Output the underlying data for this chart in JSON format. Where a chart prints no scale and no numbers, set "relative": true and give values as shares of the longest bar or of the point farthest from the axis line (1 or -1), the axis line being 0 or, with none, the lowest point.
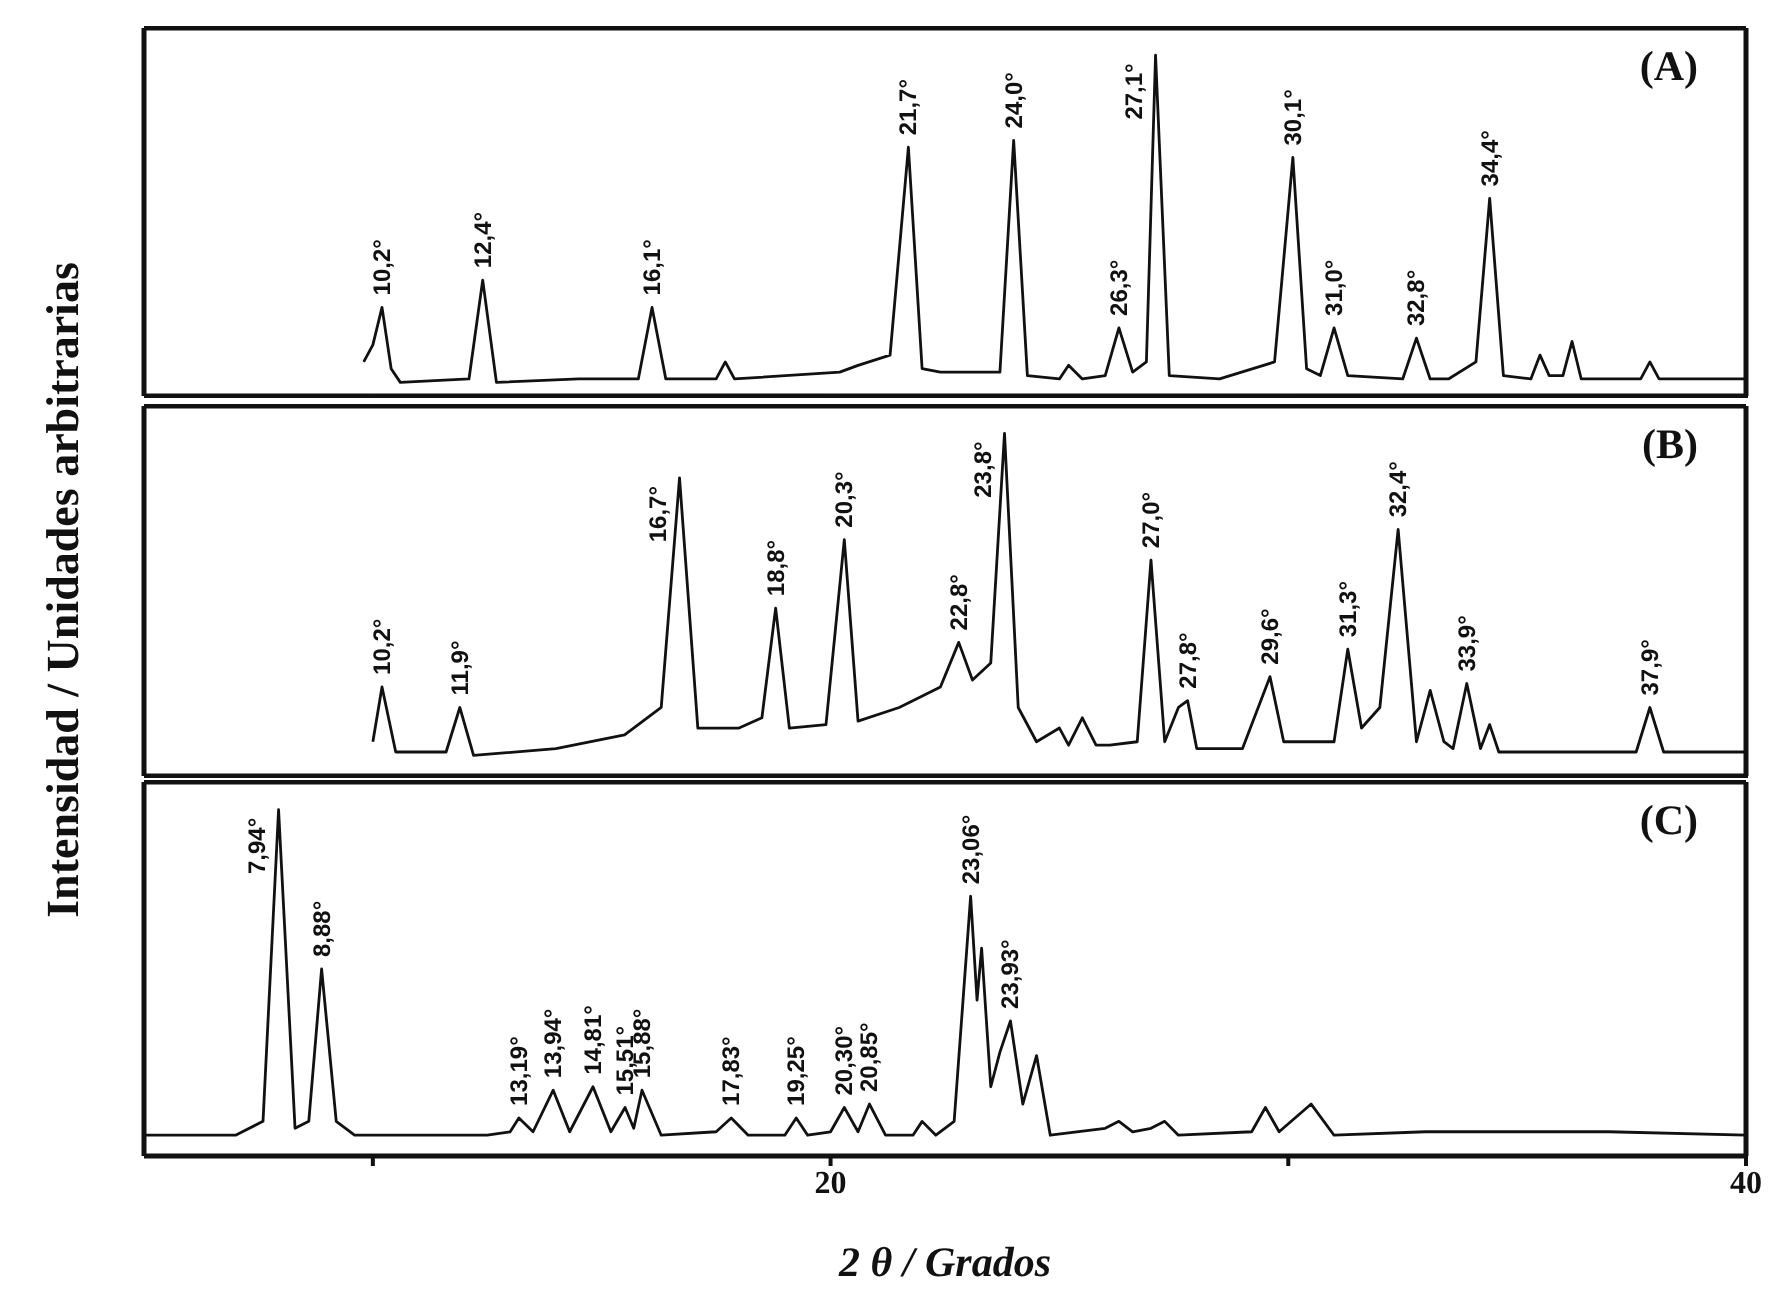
{
  "chart_data": [
    {
      "type": "line",
      "relative": true,
      "xlim": [
        5,
        40
      ],
      "xticks": [
        {
          "value": 10,
          "label": null
        },
        {
          "value": 20,
          "label": null
        },
        {
          "value": 30,
          "label": null
        },
        {
          "value": 40,
          "label": null
        }
      ],
      "tick_labels": false,
      "marker": "none",
      "x": [
        9.8,
        10.0,
        10.2,
        10.4,
        10.6,
        12.1,
        12.4,
        12.7,
        14.5,
        15.8,
        16.1,
        16.4,
        17.5,
        17.7,
        17.9,
        20.2,
        20.6,
        21.3,
        21.7,
        22.0,
        22.4,
        23.7,
        24.0,
        24.3,
        25.0,
        25.2,
        25.5,
        26.0,
        26.3,
        26.6,
        26.9,
        27.1,
        27.4,
        28.5,
        29.7,
        30.1,
        30.4,
        30.7,
        31.0,
        31.3,
        32.5,
        32.8,
        33.1,
        33.5,
        34.1,
        34.4,
        34.7,
        35.3,
        35.5,
        35.7,
        36.0,
        36.2,
        36.4,
        37.7,
        37.9,
        38.1,
        40
      ],
      "series": [
        {
          "color": "#111111",
          "values": [
            0.1,
            0.15,
            0.26,
            0.08,
            0.04,
            0.05,
            0.34,
            0.04,
            0.05,
            0.05,
            0.26,
            0.05,
            0.05,
            0.1,
            0.05,
            0.07,
            0.09,
            0.12,
            0.73,
            0.08,
            0.07,
            0.07,
            0.75,
            0.06,
            0.05,
            0.09,
            0.05,
            0.06,
            0.2,
            0.07,
            0.1,
            1.0,
            0.06,
            0.05,
            0.1,
            0.7,
            0.08,
            0.06,
            0.2,
            0.06,
            0.05,
            0.17,
            0.05,
            0.05,
            0.1,
            0.58,
            0.06,
            0.05,
            0.12,
            0.06,
            0.06,
            0.16,
            0.05,
            0.05,
            0.1,
            0.05,
            0.05
          ]
        }
      ],
      "annotations": [
        "(A)",
        {
          "text": "10,2°",
          "x": 10.2,
          "y": 0.26
        },
        {
          "text": "12,4°",
          "x": 12.4,
          "y": 0.34
        },
        {
          "text": "16,1°",
          "x": 16.1,
          "y": 0.26
        },
        {
          "text": "21,7°",
          "x": 21.7,
          "y": 0.73
        },
        {
          "text": "24,0°",
          "x": 24.0,
          "y": 0.75
        },
        {
          "text": "26,3°",
          "x": 26.3,
          "y": 0.2
        },
        {
          "text": "27,1°",
          "x": 27.1,
          "y": 1.0
        },
        {
          "text": "30,1°",
          "x": 30.1,
          "y": 0.7
        },
        {
          "text": "31,0°",
          "x": 31.0,
          "y": 0.2
        },
        {
          "text": "32,8°",
          "x": 32.8,
          "y": 0.17
        },
        {
          "text": "34,4°",
          "x": 34.4,
          "y": 0.58
        }
      ]
    },
    {
      "type": "line",
      "relative": true,
      "xlim": [
        5,
        40
      ],
      "xticks": [
        {
          "value": 10,
          "label": null
        },
        {
          "value": 20,
          "label": null
        },
        {
          "value": 30,
          "label": null
        },
        {
          "value": 40,
          "label": null
        }
      ],
      "tick_labels": false,
      "marker": "none",
      "ylabel": "Intensidad / Unidades arbitrarias",
      "x": [
        10.0,
        10.2,
        10.5,
        11.6,
        11.9,
        12.2,
        14.0,
        15.5,
        16.3,
        16.7,
        17.1,
        18.0,
        18.5,
        18.8,
        19.1,
        19.9,
        20.3,
        20.6,
        21.5,
        22.4,
        22.8,
        23.1,
        23.5,
        23.8,
        24.1,
        24.5,
        25.0,
        25.2,
        25.5,
        25.8,
        26.1,
        26.7,
        27.0,
        27.3,
        27.6,
        27.8,
        28.0,
        29.0,
        29.6,
        29.9,
        31.0,
        31.3,
        31.6,
        32.0,
        32.4,
        32.8,
        33.1,
        33.4,
        33.6,
        33.9,
        34.2,
        34.4,
        34.6,
        36.0,
        37.6,
        37.9,
        38.2,
        40
      ],
      "series": [
        {
          "color": "#111111",
          "values": [
            0.1,
            0.26,
            0.07,
            0.07,
            0.2,
            0.06,
            0.08,
            0.12,
            0.2,
            0.87,
            0.14,
            0.14,
            0.17,
            0.49,
            0.14,
            0.15,
            0.69,
            0.16,
            0.2,
            0.26,
            0.39,
            0.28,
            0.33,
            1.0,
            0.2,
            0.1,
            0.14,
            0.09,
            0.17,
            0.09,
            0.09,
            0.1,
            0.63,
            0.1,
            0.2,
            0.22,
            0.08,
            0.08,
            0.29,
            0.1,
            0.1,
            0.37,
            0.14,
            0.2,
            0.72,
            0.1,
            0.25,
            0.1,
            0.08,
            0.27,
            0.08,
            0.15,
            0.07,
            0.07,
            0.07,
            0.2,
            0.07,
            0.07
          ]
        }
      ],
      "annotations": [
        "(B)",
        {
          "text": "10,2°",
          "x": 10.2,
          "y": 0.26
        },
        {
          "text": "11,9°",
          "x": 11.9,
          "y": 0.2
        },
        {
          "text": "16,7°",
          "x": 16.7,
          "y": 0.87
        },
        {
          "text": "18,8°",
          "x": 18.8,
          "y": 0.49
        },
        {
          "text": "20,3°",
          "x": 20.3,
          "y": 0.69
        },
        {
          "text": "22,8°",
          "x": 22.8,
          "y": 0.39
        },
        {
          "text": "23,8°",
          "x": 23.8,
          "y": 1.0
        },
        {
          "text": "27,0°",
          "x": 27.0,
          "y": 0.63
        },
        {
          "text": "27,8°",
          "x": 27.8,
          "y": 0.22
        },
        {
          "text": "29,6°",
          "x": 29.6,
          "y": 0.29
        },
        {
          "text": "31,3°",
          "x": 31.3,
          "y": 0.37
        },
        {
          "text": "32,4°",
          "x": 32.4,
          "y": 0.72
        },
        {
          "text": "33,9°",
          "x": 33.9,
          "y": 0.27
        },
        {
          "text": "37,9°",
          "x": 37.9,
          "y": 0.2
        }
      ]
    },
    {
      "type": "line",
      "relative": true,
      "xlim": [
        5,
        40
      ],
      "xticks": [
        {
          "value": 10,
          "label": null
        },
        20,
        {
          "value": 30,
          "label": null
        },
        40
      ],
      "tick_labels": "x",
      "marker": "none",
      "xlabel": "2 θ / Grados",
      "x": [
        5.0,
        7.0,
        7.6,
        7.94,
        8.3,
        8.6,
        8.88,
        9.2,
        9.6,
        12.5,
        13.0,
        13.19,
        13.5,
        13.94,
        14.3,
        14.81,
        15.2,
        15.51,
        15.7,
        15.88,
        16.3,
        17.5,
        17.83,
        18.2,
        19.0,
        19.25,
        19.5,
        20.0,
        20.3,
        20.6,
        20.85,
        21.2,
        21.8,
        22.0,
        22.3,
        22.7,
        23.06,
        23.2,
        23.3,
        23.5,
        23.7,
        23.93,
        24.2,
        24.5,
        24.8,
        26.0,
        26.3,
        26.6,
        27.0,
        27.3,
        27.6,
        29.2,
        29.5,
        29.8,
        30.5,
        31.0,
        33.0,
        35.0,
        37.0,
        40
      ],
      "series": [
        {
          "color": "#111111",
          "values": [
            0.06,
            0.06,
            0.1,
            1.0,
            0.08,
            0.1,
            0.54,
            0.1,
            0.06,
            0.06,
            0.07,
            0.11,
            0.07,
            0.19,
            0.07,
            0.2,
            0.07,
            0.14,
            0.08,
            0.19,
            0.06,
            0.07,
            0.11,
            0.06,
            0.06,
            0.11,
            0.06,
            0.07,
            0.14,
            0.07,
            0.15,
            0.06,
            0.06,
            0.1,
            0.06,
            0.1,
            0.75,
            0.45,
            0.6,
            0.2,
            0.3,
            0.39,
            0.15,
            0.29,
            0.06,
            0.08,
            0.1,
            0.07,
            0.08,
            0.1,
            0.06,
            0.07,
            0.14,
            0.07,
            0.15,
            0.06,
            0.07,
            0.07,
            0.07,
            0.06
          ]
        }
      ],
      "annotations": [
        "(C)",
        {
          "text": "7,94°",
          "x": 7.94,
          "y": 1.0
        },
        {
          "text": "8,88°",
          "x": 8.88,
          "y": 0.54
        },
        {
          "text": "13,19°",
          "x": 13.19,
          "y": 0.11
        },
        {
          "text": "13,94°",
          "x": 13.94,
          "y": 0.19
        },
        {
          "text": "14,81°",
          "x": 14.81,
          "y": 0.2
        },
        {
          "text": "15,51°",
          "x": 15.51,
          "y": 0.14
        },
        {
          "text": "15,88°",
          "x": 15.88,
          "y": 0.19
        },
        {
          "text": "17,83°",
          "x": 17.83,
          "y": 0.11
        },
        {
          "text": "19,25°",
          "x": 19.25,
          "y": 0.11
        },
        {
          "text": "20,30°",
          "x": 20.3,
          "y": 0.14
        },
        {
          "text": "20,85°",
          "x": 20.85,
          "y": 0.15
        },
        {
          "text": "23,06°",
          "x": 23.06,
          "y": 0.75
        },
        {
          "text": "23,93°",
          "x": 23.93,
          "y": 0.39
        }
      ]
    }
  ]
}
